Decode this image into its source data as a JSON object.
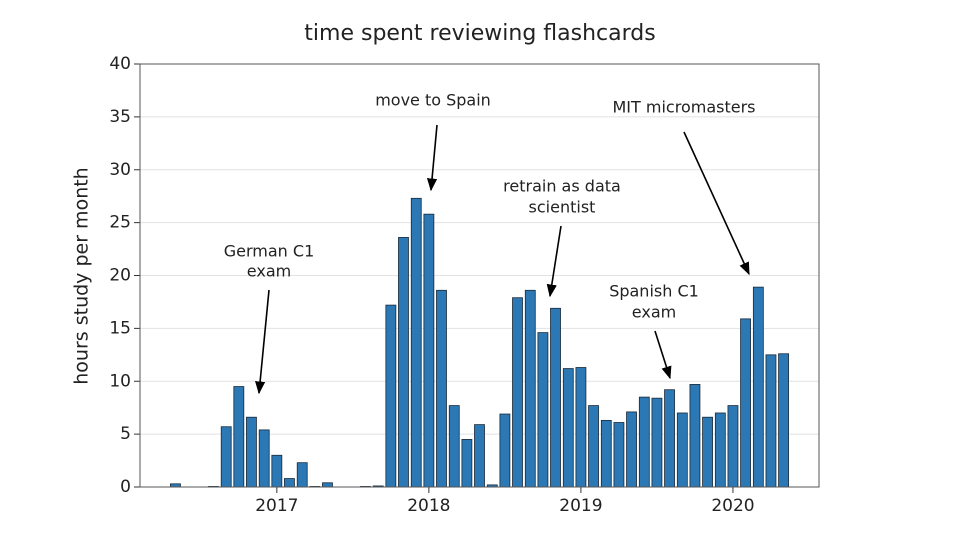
{
  "chart_data": {
    "type": "bar",
    "title": "time spent reviewing flashcards",
    "y_label": "hours study per month",
    "x": [
      2016.333,
      2016.417,
      2016.5,
      2016.583,
      2016.667,
      2016.75,
      2016.833,
      2016.917,
      2017.0,
      2017.083,
      2017.167,
      2017.25,
      2017.333,
      2017.417,
      2017.5,
      2017.583,
      2017.667,
      2017.75,
      2017.833,
      2017.917,
      2018.0,
      2018.083,
      2018.167,
      2018.25,
      2018.333,
      2018.417,
      2018.5,
      2018.583,
      2018.667,
      2018.75,
      2018.833,
      2018.917,
      2019.0,
      2019.083,
      2019.167,
      2019.25,
      2019.333,
      2019.417,
      2019.5,
      2019.583,
      2019.667,
      2019.75,
      2019.833,
      2019.917,
      2020.0,
      2020.083,
      2020.167,
      2020.25,
      2020.333
    ],
    "values": [
      0.3,
      0,
      0,
      0.05,
      5.7,
      9.5,
      6.6,
      5.4,
      3.0,
      0.8,
      2.3,
      0.05,
      0.4,
      0,
      0,
      0.05,
      0.1,
      17.2,
      23.6,
      27.3,
      25.8,
      18.6,
      7.7,
      4.5,
      5.9,
      0.2,
      6.9,
      17.9,
      18.6,
      14.6,
      16.9,
      11.2,
      11.3,
      7.7,
      6.3,
      6.1,
      7.1,
      8.5,
      8.4,
      9.2,
      7.0,
      9.7,
      6.6,
      7.0,
      7.7,
      15.9,
      18.9,
      12.5,
      12.6
    ],
    "color": "#2b78b4",
    "xlim": [
      2016.1,
      2020.566
    ],
    "xticks": [
      2017,
      2018,
      2019,
      2020
    ],
    "ylim": [
      0,
      40
    ],
    "yticks": [
      0,
      5,
      10,
      15,
      20,
      25,
      30,
      35,
      40
    ],
    "grid": true,
    "annotations": [
      {
        "lines": [
          "German C1",
          "exam"
        ]
      },
      {
        "lines": [
          "move to Spain"
        ]
      },
      {
        "lines": [
          "retrain as data",
          "scientist"
        ]
      },
      {
        "lines": [
          "Spanish C1",
          "exam"
        ]
      },
      {
        "lines": [
          "MIT micromasters"
        ]
      }
    ]
  }
}
